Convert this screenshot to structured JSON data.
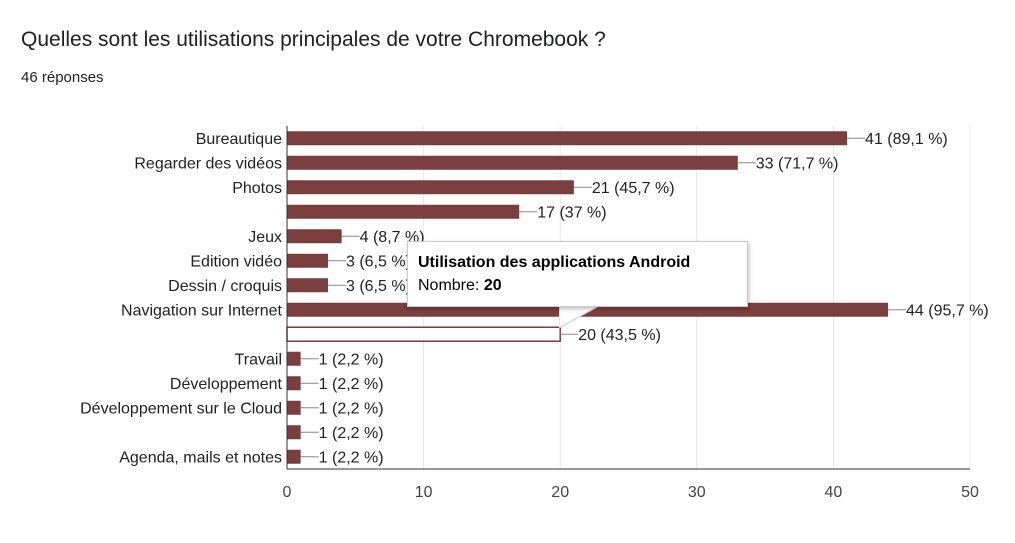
{
  "header": {
    "title": "Quelles sont les utilisations principales de votre Chromebook ?",
    "responses": "46 réponses"
  },
  "chart_data": {
    "type": "bar",
    "orientation": "horizontal",
    "title": "Quelles sont les utilisations principales de votre Chromebook ?",
    "xlim": [
      0,
      50
    ],
    "xticks": [
      0,
      10,
      20,
      30,
      40,
      50
    ],
    "grid": true,
    "bar_color": "#7b3e3e",
    "categories": [
      "Bureautique",
      "Regarder des vidéos",
      "Photos",
      "",
      "Jeux",
      "Edition vidéo",
      "Dessin / croquis",
      "Navigation sur Internet",
      "",
      "Travail",
      "Développement",
      "Développement sur le Cloud",
      "",
      "Agenda, mails et notes"
    ],
    "values": [
      41,
      33,
      21,
      17,
      4,
      3,
      3,
      44,
      20,
      1,
      1,
      1,
      1,
      1
    ],
    "data_labels": [
      "41 (89,1 %)",
      "33 (71,7 %)",
      "21 (45,7 %)",
      "17 (37 %)",
      "4 (8,7 %)",
      "3 (6,5 %)",
      "3 (6,5 %)",
      "44 (95,7 %)",
      "20 (43,5 %)",
      "1 (2,2 %)",
      "1 (2,2 %)",
      "1 (2,2 %)",
      "1 (2,2 %)",
      "1 (2,2 %)"
    ],
    "highlighted_index": 8
  },
  "tooltip": {
    "title": "Utilisation des applications Android",
    "value_label": "Nombre:",
    "value": "20"
  }
}
